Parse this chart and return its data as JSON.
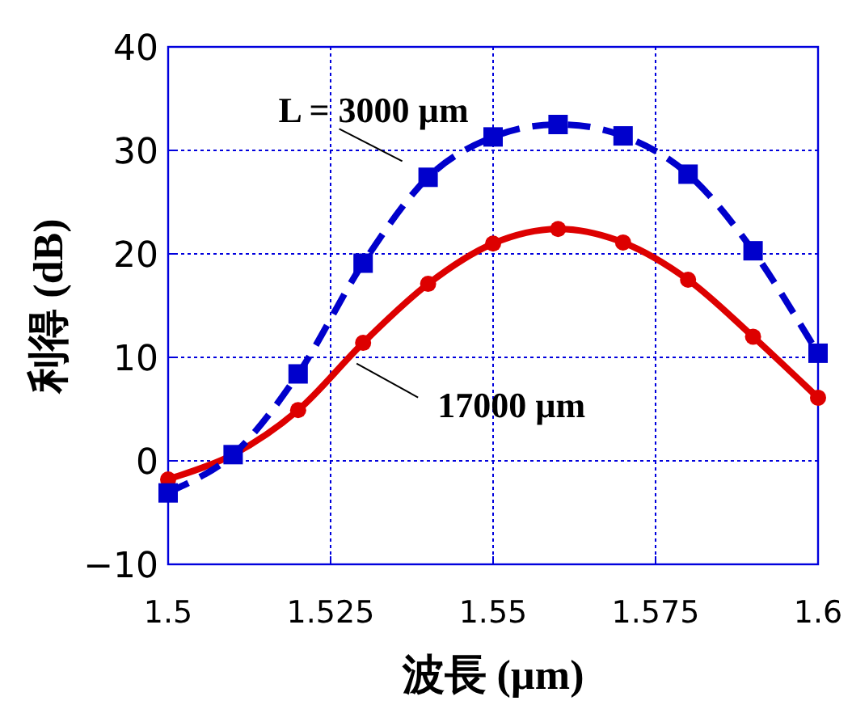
{
  "chart_data": {
    "type": "line",
    "xlabel": "波長 (µm)",
    "ylabel": "利得 (dB)",
    "x": [
      1.5,
      1.51,
      1.52,
      1.53,
      1.54,
      1.55,
      1.56,
      1.57,
      1.58,
      1.59,
      1.6
    ],
    "series": [
      {
        "color": "#0000cc",
        "marker": "square",
        "line_style": "dashed",
        "values": [
          -3.1,
          0.6,
          8.4,
          19.1,
          27.4,
          31.3,
          32.5,
          31.4,
          27.7,
          20.3,
          10.4
        ]
      },
      {
        "color": "#dd0000",
        "marker": "circle",
        "line_style": "solid",
        "values": [
          -1.8,
          0.6,
          4.9,
          11.4,
          17.1,
          21.0,
          22.4,
          21.1,
          17.5,
          12.0,
          6.1
        ]
      }
    ],
    "xlim": [
      1.5,
      1.6
    ],
    "xticks": [
      1.5,
      1.525,
      1.55,
      1.575,
      1.6
    ],
    "ylim": [
      -10,
      40
    ],
    "yticks": [
      -10,
      0,
      10,
      20,
      30,
      40
    ],
    "grid": true,
    "annotations": [
      {
        "text": "L = 3000 µm",
        "x": 1.54,
        "y": 27.4
      },
      {
        "text": "17000 µm",
        "x": 1.529,
        "y": 9.4
      }
    ]
  }
}
